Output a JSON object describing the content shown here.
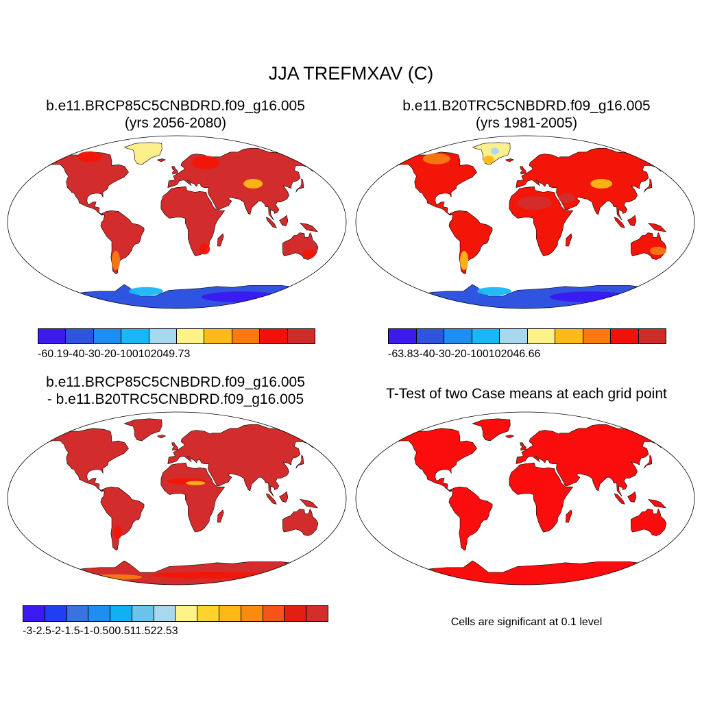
{
  "main_title": "JJA TREFMXAV (C)",
  "panels": {
    "top_left": {
      "title_line1": "b.e11.BRCP85C5CNBDRD.f09_g16.005",
      "title_line2": "(yrs 2056-2080)",
      "colorbar": {
        "colors": [
          "#3a19f2",
          "#2f55e0",
          "#1f8ef0",
          "#16b8f5",
          "#a8d8f0",
          "#fef38a",
          "#fdbb17",
          "#fb7a0e",
          "#f50f0a",
          "#d02a29"
        ],
        "labels": [
          "-60.19",
          "-40",
          "-30",
          "-20",
          "-10",
          "0",
          "10",
          "20",
          "49.73"
        ]
      }
    },
    "top_right": {
      "title_line1": "b.e11.B20TRC5CNBDRD.f09_g16.005",
      "title_line2": "(yrs 1981-2005)",
      "colorbar": {
        "colors": [
          "#3a19f2",
          "#2f55e0",
          "#1f8ef0",
          "#16b8f5",
          "#a8d8f0",
          "#fef38a",
          "#fdbb17",
          "#fb7a0e",
          "#f50f0a",
          "#d02a29"
        ],
        "labels": [
          "-63.83",
          "-40",
          "-30",
          "-20",
          "-10",
          "0",
          "10",
          "20",
          "46.66"
        ]
      }
    },
    "bottom_left": {
      "title_line1": "b.e11.BRCP85C5CNBDRD.f09_g16.005",
      "title_line2": "- b.e11.B20TRC5CNBDRD.f09_g16.005",
      "colorbar": {
        "colors": [
          "#3a19f2",
          "#1f3ff0",
          "#3a73e0",
          "#1f8ef0",
          "#0fb1f2",
          "#6ac4ea",
          "#a8d8f0",
          "#fef38a",
          "#fdd52a",
          "#fdb817",
          "#fb8a0e",
          "#f7541a",
          "#e31e12",
          "#d42d2b"
        ],
        "labels": [
          "-3",
          "-2.5",
          "-2",
          "-1.5",
          "-1",
          "-0.5",
          "0",
          "0.5",
          "1",
          "1.5",
          "2",
          "2.5",
          "3"
        ]
      }
    },
    "bottom_right": {
      "title": "T-Test of two Case means at each grid point",
      "note": "Cells are significant at 0.1 level"
    }
  },
  "map_colors": {
    "land_hot": "#d32c2c",
    "land_warm": "#f21508",
    "land_orange": "#f77a12",
    "land_amber": "#fdb817",
    "land_yellow": "#fdef8c",
    "land_lightblue": "#a8d8f0",
    "ant_blue": "#2f55e0",
    "ant_deep": "#3a19f2",
    "ant_cyan": "#16b8f5",
    "ttest_red": "#fb0d0d"
  }
}
